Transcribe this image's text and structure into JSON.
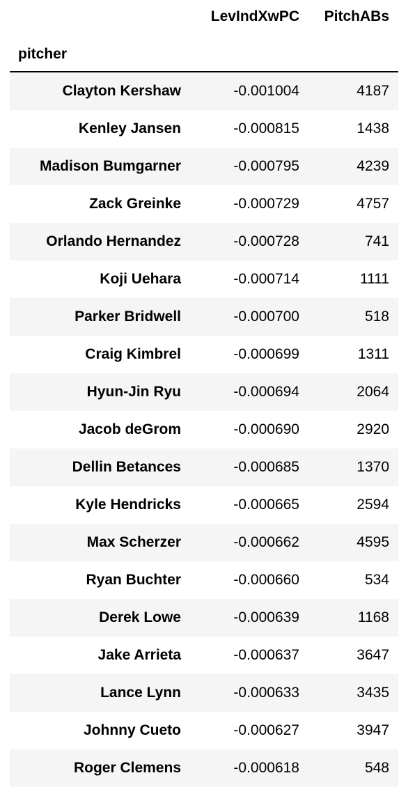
{
  "columns": {
    "col1": "LevIndXwPC",
    "col2": "PitchABs"
  },
  "index_name": "pitcher",
  "rows": [
    {
      "pitcher": "Clayton Kershaw",
      "LevIndXwPC": "-0.001004",
      "PitchABs": "4187"
    },
    {
      "pitcher": "Kenley Jansen",
      "LevIndXwPC": "-0.000815",
      "PitchABs": "1438"
    },
    {
      "pitcher": "Madison Bumgarner",
      "LevIndXwPC": "-0.000795",
      "PitchABs": "4239"
    },
    {
      "pitcher": "Zack Greinke",
      "LevIndXwPC": "-0.000729",
      "PitchABs": "4757"
    },
    {
      "pitcher": "Orlando Hernandez",
      "LevIndXwPC": "-0.000728",
      "PitchABs": "741"
    },
    {
      "pitcher": "Koji Uehara",
      "LevIndXwPC": "-0.000714",
      "PitchABs": "1111"
    },
    {
      "pitcher": "Parker Bridwell",
      "LevIndXwPC": "-0.000700",
      "PitchABs": "518"
    },
    {
      "pitcher": "Craig Kimbrel",
      "LevIndXwPC": "-0.000699",
      "PitchABs": "1311"
    },
    {
      "pitcher": "Hyun-Jin Ryu",
      "LevIndXwPC": "-0.000694",
      "PitchABs": "2064"
    },
    {
      "pitcher": "Jacob deGrom",
      "LevIndXwPC": "-0.000690",
      "PitchABs": "2920"
    },
    {
      "pitcher": "Dellin Betances",
      "LevIndXwPC": "-0.000685",
      "PitchABs": "1370"
    },
    {
      "pitcher": "Kyle Hendricks",
      "LevIndXwPC": "-0.000665",
      "PitchABs": "2594"
    },
    {
      "pitcher": "Max Scherzer",
      "LevIndXwPC": "-0.000662",
      "PitchABs": "4595"
    },
    {
      "pitcher": "Ryan Buchter",
      "LevIndXwPC": "-0.000660",
      "PitchABs": "534"
    },
    {
      "pitcher": "Derek Lowe",
      "LevIndXwPC": "-0.000639",
      "PitchABs": "1168"
    },
    {
      "pitcher": "Jake Arrieta",
      "LevIndXwPC": "-0.000637",
      "PitchABs": "3647"
    },
    {
      "pitcher": "Lance Lynn",
      "LevIndXwPC": "-0.000633",
      "PitchABs": "3435"
    },
    {
      "pitcher": "Johnny Cueto",
      "LevIndXwPC": "-0.000627",
      "PitchABs": "3947"
    },
    {
      "pitcher": "Roger Clemens",
      "LevIndXwPC": "-0.000618",
      "PitchABs": "548"
    }
  ],
  "colors": {
    "stripe": "#f5f5f5",
    "text": "#000000",
    "rule": "#000000"
  }
}
